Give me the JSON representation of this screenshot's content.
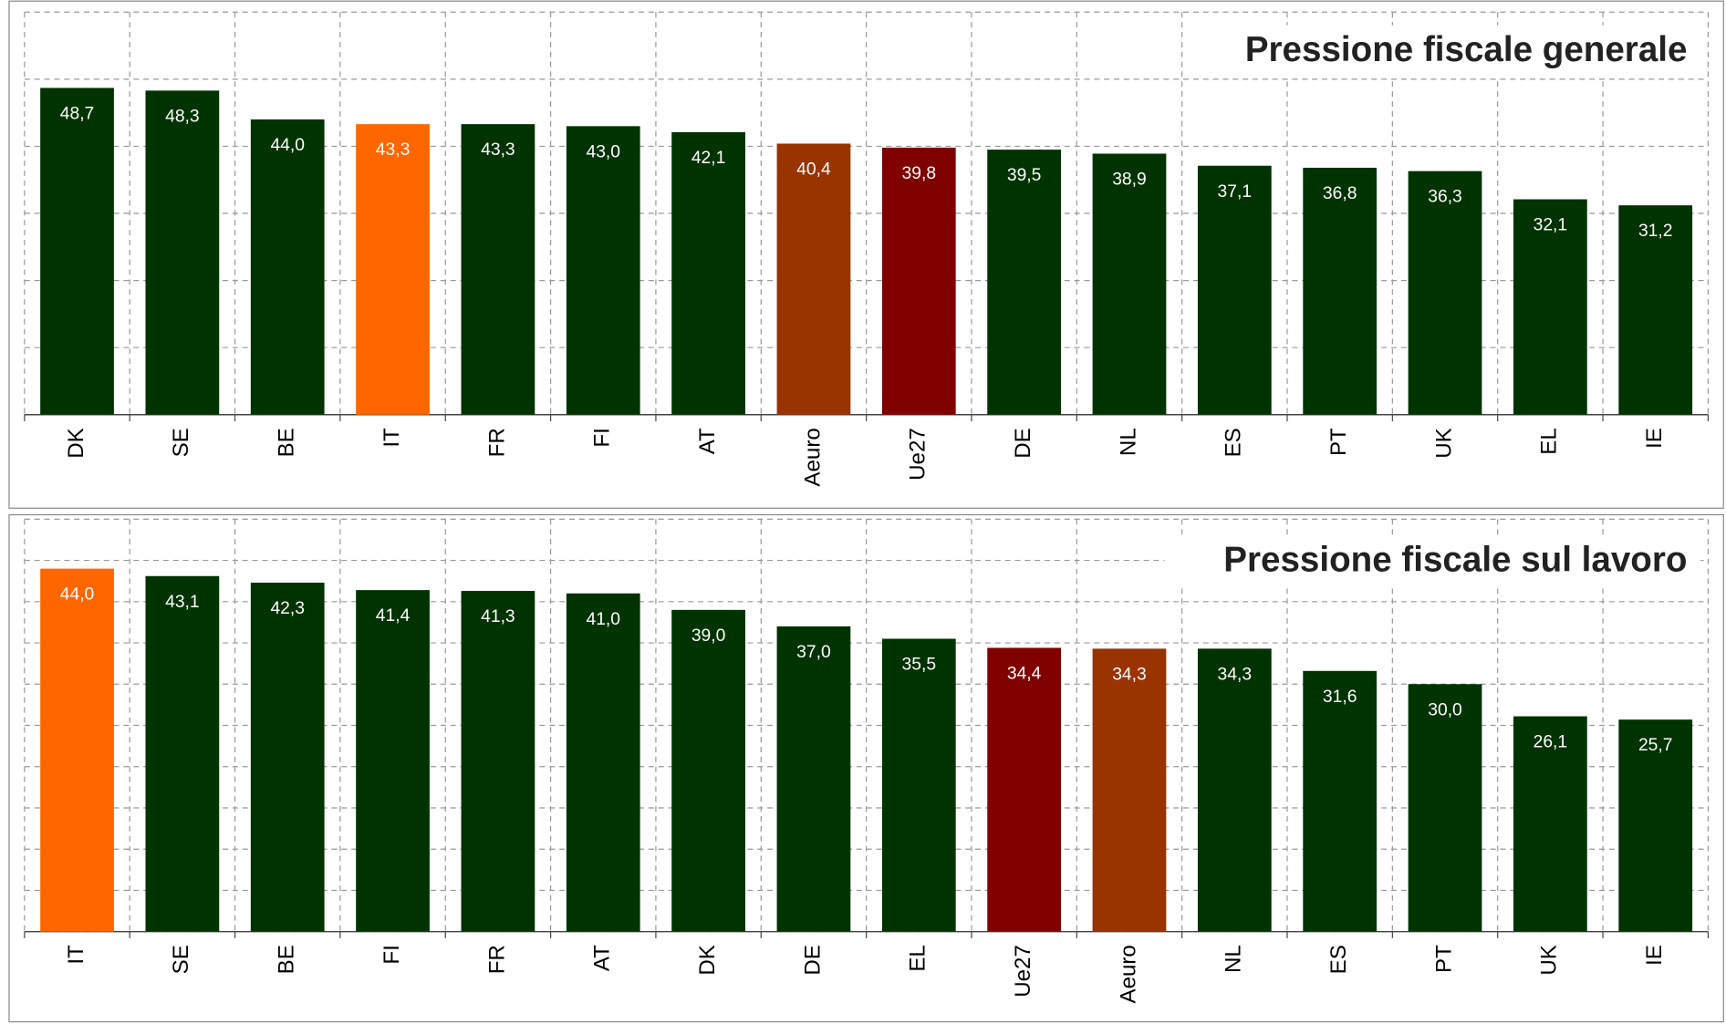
{
  "chart_data": [
    {
      "type": "bar",
      "title": "Pressione fiscale generale",
      "categories": [
        "DK",
        "SE",
        "BE",
        "IT",
        "FR",
        "FI",
        "AT",
        "Aeuro",
        "Ue27",
        "DE",
        "NL",
        "ES",
        "PT",
        "UK",
        "EL",
        "IE"
      ],
      "values": [
        48.7,
        48.3,
        44.0,
        43.3,
        43.3,
        43.0,
        42.1,
        40.4,
        39.8,
        39.5,
        38.9,
        37.1,
        36.8,
        36.3,
        32.1,
        31.2
      ],
      "value_labels": [
        "48,7",
        "48,3",
        "44,0",
        "43,3",
        "43,3",
        "43,0",
        "42,1",
        "40,4",
        "39,8",
        "39,5",
        "38,9",
        "37,1",
        "36,8",
        "36,3",
        "32,1",
        "31,2"
      ],
      "colors": [
        "#003300",
        "#003300",
        "#003300",
        "#ff6600",
        "#003300",
        "#003300",
        "#003300",
        "#993300",
        "#800000",
        "#003300",
        "#003300",
        "#003300",
        "#003300",
        "#003300",
        "#003300",
        "#003300"
      ],
      "ylim": [
        0,
        60
      ],
      "yticks": [
        0,
        10,
        20,
        30,
        40,
        50,
        60
      ],
      "grid": true
    },
    {
      "type": "bar",
      "title": "Pressione fiscale sul lavoro",
      "categories": [
        "IT",
        "SE",
        "BE",
        "FI",
        "FR",
        "AT",
        "DK",
        "DE",
        "EL",
        "Ue27",
        "Aeuro",
        "NL",
        "ES",
        "PT",
        "UK",
        "IE"
      ],
      "values": [
        44.0,
        43.1,
        42.3,
        41.4,
        41.3,
        41.0,
        39.0,
        37.0,
        35.5,
        34.4,
        34.3,
        34.3,
        31.6,
        30.0,
        26.1,
        25.7
      ],
      "value_labels": [
        "44,0",
        "43,1",
        "42,3",
        "41,4",
        "41,3",
        "41,0",
        "39,0",
        "37,0",
        "35,5",
        "34,4",
        "34,3",
        "34,3",
        "31,6",
        "30,0",
        "26,1",
        "25,7"
      ],
      "colors": [
        "#ff6600",
        "#003300",
        "#003300",
        "#003300",
        "#003300",
        "#003300",
        "#003300",
        "#003300",
        "#003300",
        "#800000",
        "#993300",
        "#003300",
        "#003300",
        "#003300",
        "#003300",
        "#003300"
      ],
      "ylim": [
        0,
        50
      ],
      "yticks": [
        0,
        5,
        10,
        15,
        20,
        25,
        30,
        35,
        40,
        45,
        50
      ],
      "grid": true
    }
  ]
}
